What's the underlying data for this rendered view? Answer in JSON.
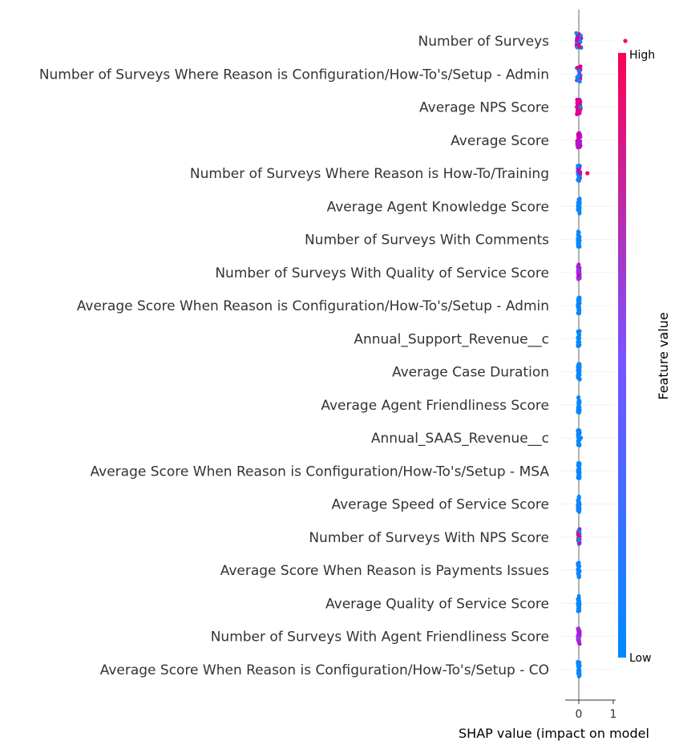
{
  "chart_data": {
    "type": "scatter",
    "subtype": "shap-beeswarm",
    "features": [
      "Number of Surveys",
      "Number of Surveys Where Reason is Configuration/How-To's/Setup - Admin",
      "Average NPS Score",
      "Average Score",
      "Number of Surveys Where Reason is How-To/Training",
      "Average Agent Knowledge Score",
      "Number of Surveys With Comments",
      "Number of Surveys With Quality of Service Score",
      "Average Score When Reason is Configuration/How-To's/Setup - Admin",
      "Annual_Support_Revenue__c",
      "Average Case Duration",
      "Average Agent Friendliness Score",
      "Annual_SAAS_Revenue__c",
      "Average Score When Reason is Configuration/How-To's/Setup - MSA",
      "Average Speed of Service Score",
      "Number of Surveys With NPS Score",
      "Average Score When Reason is Payments Issues",
      "Average Quality of Service Score",
      "Number of Surveys With Agent Friendliness Score",
      "Average Score When Reason is Configuration/How-To's/Setup - CO"
    ],
    "clusters": [
      {
        "spread": 0.08,
        "color": "mixed-blue-magenta",
        "outliers": [
          {
            "x": 1.35,
            "color": 1.0
          }
        ]
      },
      {
        "spread": 0.06,
        "color": "mixed-blue-magenta",
        "outliers": []
      },
      {
        "spread": 0.06,
        "color": "mixed-magenta-red",
        "outliers": [
          {
            "x": 0.05,
            "color": 0.0
          }
        ]
      },
      {
        "spread": 0.05,
        "color": "mixed-magenta",
        "outliers": []
      },
      {
        "spread": 0.04,
        "color": "mostly-blue",
        "outliers": [
          {
            "x": 0.25,
            "color": 1.0
          },
          {
            "x": 0.04,
            "color": 0.75
          }
        ]
      },
      {
        "spread": 0.03,
        "color": "blue",
        "outliers": []
      },
      {
        "spread": 0.03,
        "color": "blue",
        "outliers": []
      },
      {
        "spread": 0.03,
        "color": "purple",
        "outliers": []
      },
      {
        "spread": 0.03,
        "color": "blue",
        "outliers": []
      },
      {
        "spread": 0.03,
        "color": "blue",
        "outliers": []
      },
      {
        "spread": 0.03,
        "color": "blue",
        "outliers": []
      },
      {
        "spread": 0.03,
        "color": "blue",
        "outliers": []
      },
      {
        "spread": 0.03,
        "color": "blue",
        "outliers": [
          {
            "x": 0.06,
            "color": 0.05
          }
        ]
      },
      {
        "spread": 0.03,
        "color": "blue",
        "outliers": []
      },
      {
        "spread": 0.03,
        "color": "blue",
        "outliers": []
      },
      {
        "spread": 0.03,
        "color": "mixed-blue-magenta",
        "outliers": []
      },
      {
        "spread": 0.03,
        "color": "blue",
        "outliers": []
      },
      {
        "spread": 0.03,
        "color": "blue",
        "outliers": []
      },
      {
        "spread": 0.03,
        "color": "purple",
        "outliers": []
      },
      {
        "spread": 0.03,
        "color": "blue",
        "outliers": []
      }
    ],
    "xlabel": "SHAP value (impact on model",
    "xticks": [
      0,
      1
    ],
    "xlim": [
      -0.12,
      1.6
    ],
    "colorbar": {
      "title": "Feature value",
      "high_label": "High",
      "low_label": "Low",
      "low_color": "#008bfb",
      "high_color": "#ff0052"
    },
    "grid": "dotted-horizontal"
  }
}
